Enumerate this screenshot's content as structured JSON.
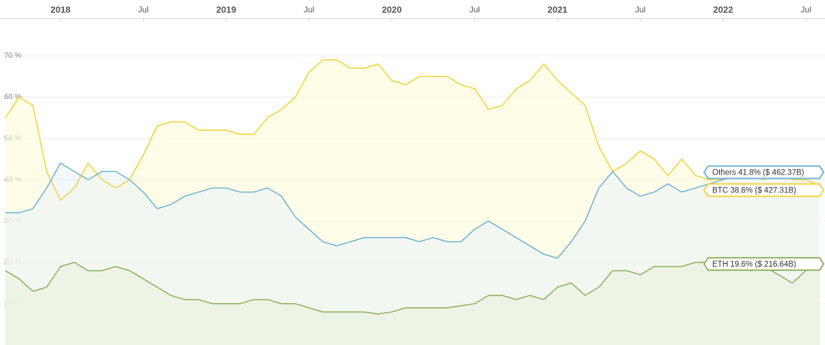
{
  "chart_data": {
    "type": "line",
    "x": [
      "2017-09",
      "2017-10",
      "2017-11",
      "2017-12",
      "2018-01",
      "2018-02",
      "2018-03",
      "2018-04",
      "2018-05",
      "2018-06",
      "2018-07",
      "2018-08",
      "2018-09",
      "2018-10",
      "2018-11",
      "2018-12",
      "2019-01",
      "2019-02",
      "2019-03",
      "2019-04",
      "2019-05",
      "2019-06",
      "2019-07",
      "2019-08",
      "2019-09",
      "2019-10",
      "2019-11",
      "2019-12",
      "2020-01",
      "2020-02",
      "2020-03",
      "2020-04",
      "2020-05",
      "2020-06",
      "2020-07",
      "2020-08",
      "2020-09",
      "2020-10",
      "2020-11",
      "2020-12",
      "2021-01",
      "2021-02",
      "2021-03",
      "2021-04",
      "2021-05",
      "2021-06",
      "2021-07",
      "2021-08",
      "2021-09",
      "2021-10",
      "2021-11",
      "2021-12",
      "2022-01",
      "2022-02",
      "2022-03",
      "2022-04",
      "2022-05",
      "2022-06",
      "2022-07",
      "2022-08"
    ],
    "xlim": [
      "2017-08",
      "2022-09"
    ],
    "xticks": [
      {
        "value": "2018-01",
        "label": "2018"
      },
      {
        "value": "2018-07",
        "label": "Jul"
      },
      {
        "value": "2019-01",
        "label": "2019"
      },
      {
        "value": "2019-07",
        "label": "Jul"
      },
      {
        "value": "2020-01",
        "label": "2020"
      },
      {
        "value": "2020-07",
        "label": "Jul"
      },
      {
        "value": "2021-01",
        "label": "2021"
      },
      {
        "value": "2021-07",
        "label": "Jul"
      },
      {
        "value": "2022-01",
        "label": "2022"
      },
      {
        "value": "2022-07",
        "label": "Jul"
      }
    ],
    "ylim": [
      0,
      79
    ],
    "yticks": [
      {
        "value": 10,
        "label": "10 %"
      },
      {
        "value": 20,
        "label": "20 %"
      },
      {
        "value": 30,
        "label": "30 %"
      },
      {
        "value": 40,
        "label": "40 %"
      },
      {
        "value": 50,
        "label": "50 %"
      },
      {
        "value": 60,
        "label": "60 %"
      },
      {
        "value": 70,
        "label": "70 %"
      }
    ],
    "grid": true,
    "series": [
      {
        "label": "BTC 38.6% ($ 427.31B)",
        "color": "#f0d43a",
        "fill": "#fffbd8",
        "values": [
          55,
          60,
          58,
          42,
          35,
          38,
          44,
          40,
          38,
          40,
          46,
          53,
          54,
          54,
          52,
          52,
          52,
          51,
          51,
          55,
          57,
          60,
          66,
          69,
          69,
          67,
          67,
          68,
          64,
          63,
          65,
          65,
          65,
          63,
          62,
          57,
          58,
          62,
          64,
          68,
          64,
          61,
          58,
          48,
          42,
          44,
          47,
          45,
          41,
          45,
          41,
          40,
          40,
          42,
          41,
          40,
          42,
          40,
          40,
          38.6
        ]
      },
      {
        "label": "Others 41.8% ($ 462.37B)",
        "color": "#6fb3d2",
        "fill": "#e9f4f8",
        "values": [
          32,
          32,
          33,
          38,
          44,
          42,
          40,
          42,
          42,
          40,
          37,
          33,
          34,
          36,
          37,
          38,
          38,
          37,
          37,
          38,
          36,
          31,
          28,
          25,
          24,
          25,
          26,
          26,
          26,
          26,
          25,
          26,
          25,
          25,
          28,
          30,
          28,
          26,
          24,
          22,
          21,
          25,
          30,
          38,
          42,
          38,
          36,
          37,
          39,
          37,
          38,
          39,
          40,
          41,
          42,
          43,
          42,
          43,
          43,
          41.8
        ]
      },
      {
        "label": "ETH 19.6% ($ 216.64B)",
        "color": "#8db35a",
        "fill": "#eaf1de",
        "values": [
          18,
          16,
          13,
          14,
          19,
          20,
          18,
          18,
          19,
          18,
          16,
          14,
          12,
          11,
          11,
          10,
          10,
          10,
          11,
          11,
          10,
          10,
          9,
          8,
          8,
          8,
          8,
          7.5,
          8,
          9,
          9,
          9,
          9,
          9.5,
          10,
          12,
          12,
          11,
          12,
          11,
          14,
          15,
          12,
          14,
          18,
          18,
          17,
          19,
          19,
          19,
          20,
          20,
          19,
          19,
          18,
          19,
          17,
          15,
          18,
          19.6
        ]
      }
    ]
  }
}
